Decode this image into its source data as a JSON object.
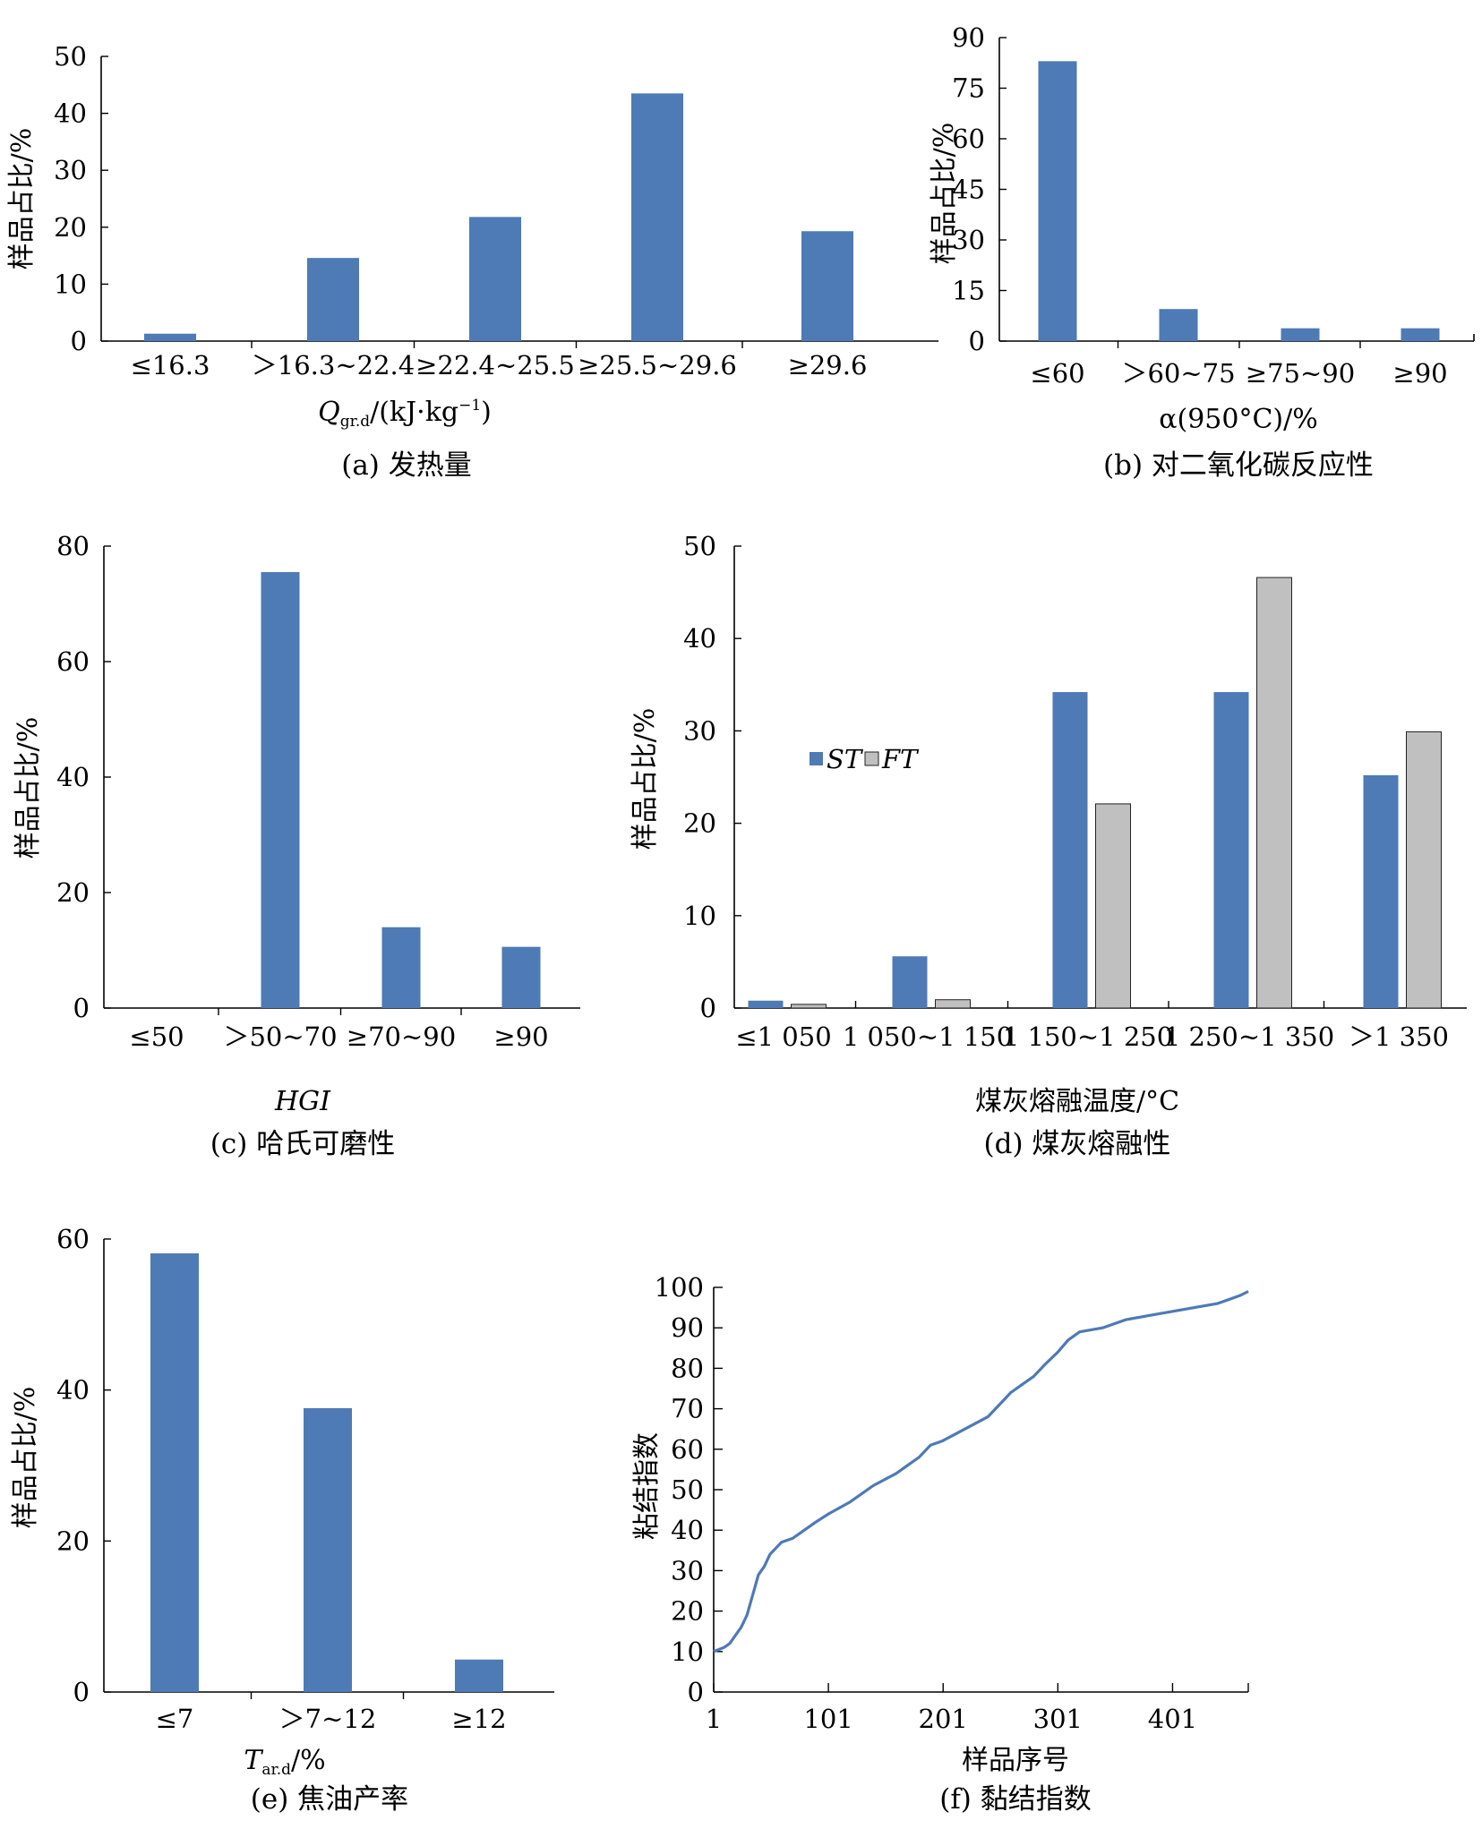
{
  "colors": {
    "blue": "#4E7AB5",
    "gray": "#C0C0C0",
    "axis": "#000000"
  },
  "chart_data": [
    {
      "type": "bar",
      "categories": [
        "≤16.3",
        "＞16.3~22.4",
        "≥22.4~25.5",
        "≥25.5~29.6",
        "≥29.6"
      ],
      "values": [
        1.3,
        14.6,
        21.8,
        43.5,
        19.3
      ],
      "ylabel": "样品占比/%",
      "xlabel": {
        "base": "Q",
        "sub": "gr.d",
        "rest1": "/(kJ·kg",
        "sup": "−1",
        "rest2": ")"
      },
      "yticks": [
        0,
        10,
        20,
        30,
        40,
        50
      ],
      "ylim": [
        0,
        50
      ],
      "caption": "(a) 发热量"
    },
    {
      "type": "bar",
      "categories": [
        "≤60",
        "＞60~75",
        "≥75~90",
        "≥90"
      ],
      "values": [
        83,
        9.5,
        3.8,
        3.8
      ],
      "ylabel": "样品占比/%",
      "xlabel": {
        "base": "α(950°C)/%"
      },
      "yticks": [
        0,
        15,
        30,
        45,
        60,
        75,
        90
      ],
      "ylim": [
        0,
        90
      ],
      "caption": "(b) 对二氧化碳反应性"
    },
    {
      "type": "bar",
      "categories": [
        "≤50",
        "＞50~70",
        "≥70~90",
        "≥90"
      ],
      "values": [
        0,
        75.5,
        14,
        10.6
      ],
      "ylabel": "样品占比/%",
      "xlabel": {
        "base": "HGI",
        "italic": true
      },
      "yticks": [
        0,
        20,
        40,
        60,
        80
      ],
      "ylim": [
        0,
        80
      ],
      "caption": "(c) 哈氏可磨性"
    },
    {
      "type": "bar",
      "categories": [
        "≤1 050",
        "1 050~1 150",
        "1 150~1 250",
        "1 250~1 350",
        "＞1 350"
      ],
      "series": [
        {
          "name": "ST",
          "values": [
            0.8,
            5.6,
            34.2,
            34.2,
            25.2
          ]
        },
        {
          "name": "FT",
          "values": [
            0.4,
            0.9,
            22.1,
            46.6,
            29.9
          ]
        }
      ],
      "ylabel": "样品占比/%",
      "xlabel": {
        "base": "煤灰熔融温度/°C"
      },
      "yticks": [
        0,
        10,
        20,
        30,
        40,
        50
      ],
      "ylim": [
        0,
        50
      ],
      "legend": "left-middle",
      "caption": "(d) 煤灰熔融性"
    },
    {
      "type": "bar",
      "categories": [
        "≤7",
        "＞7~12",
        "≥12"
      ],
      "values": [
        58.1,
        37.6,
        4.3
      ],
      "ylabel": "样品占比/%",
      "xlabel": {
        "base": "T",
        "sub": "ar.d",
        "rest1": "/%",
        "italic": true
      },
      "yticks": [
        0,
        20,
        40,
        60
      ],
      "ylim": [
        0,
        60
      ],
      "caption": "(e) 焦油产率"
    },
    {
      "type": "line",
      "ylabel": "粘结指数",
      "xlabel": {
        "base": "样品序号"
      },
      "xticks": [
        1,
        101,
        201,
        301,
        401
      ],
      "xlim": [
        1,
        467
      ],
      "yticks": [
        0,
        10,
        20,
        30,
        40,
        50,
        60,
        70,
        80,
        90,
        100
      ],
      "ylim": [
        0,
        100
      ],
      "x": [
        1,
        10,
        15,
        20,
        25,
        30,
        35,
        40,
        45,
        50,
        60,
        70,
        80,
        90,
        101,
        120,
        140,
        160,
        180,
        190,
        200,
        220,
        240,
        250,
        260,
        280,
        290,
        301,
        310,
        320,
        340,
        360,
        380,
        400,
        420,
        440,
        450,
        460,
        467
      ],
      "y": [
        10,
        11,
        12,
        14,
        16,
        19,
        24,
        29,
        31,
        34,
        37,
        38,
        40,
        42,
        44,
        47,
        51,
        54,
        58,
        61,
        62,
        65,
        68,
        71,
        74,
        78,
        81,
        84,
        87,
        89,
        90,
        92,
        93,
        94,
        95,
        96,
        97,
        98,
        99
      ],
      "caption": "(f) 黏结指数"
    }
  ]
}
